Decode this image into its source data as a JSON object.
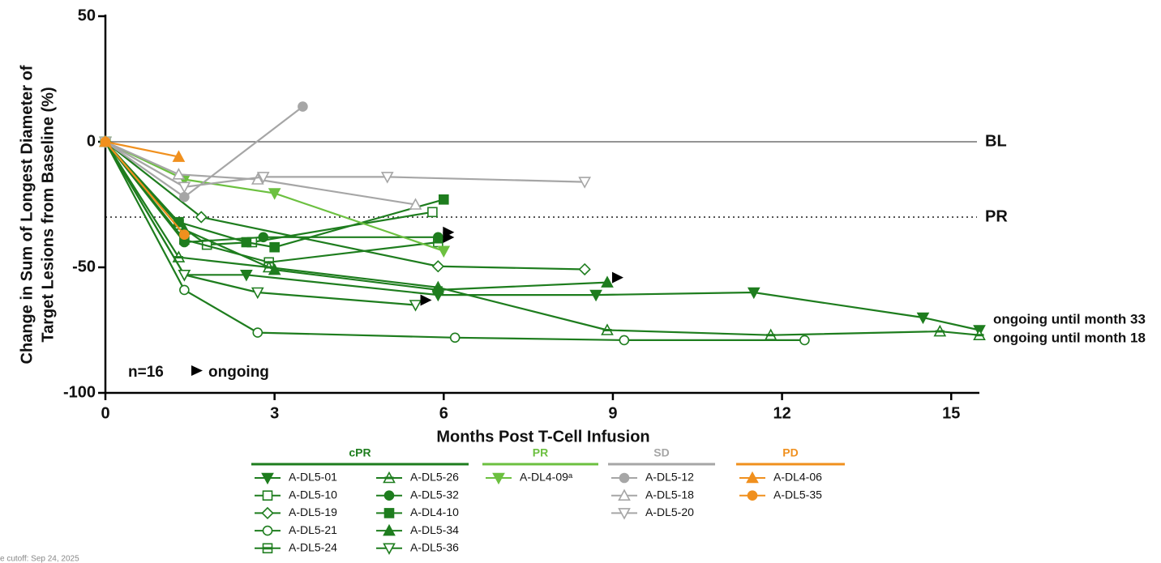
{
  "chart_data": {
    "type": "line",
    "y_label": [
      "Change in Sum of Longest Diameter of",
      "Target Lesions from Baseline (%)"
    ],
    "x_label": "Months Post T-Cell Infusion",
    "xlim": [
      0,
      15.5
    ],
    "xticks": [
      0,
      3,
      6,
      9,
      12,
      15
    ],
    "ylim": [
      -100,
      50
    ],
    "yticks": [
      -100,
      -50,
      0,
      50
    ],
    "reference_lines": [
      {
        "value": 0,
        "label": "BL",
        "style": "solid"
      },
      {
        "value": -30,
        "label": "PR",
        "style": "dotted"
      }
    ],
    "annotations": {
      "n": "n=16",
      "ongoing": "ongoing"
    },
    "footnote": "e cutoff: Sep 24, 2025",
    "legend_groups": [
      {
        "name": "cPR",
        "color": "#1e7d1e"
      },
      {
        "name": "PR",
        "color": "#6cc040"
      },
      {
        "name": "SD",
        "color": "#a6a6a6"
      },
      {
        "name": "PD",
        "color": "#f0901e"
      }
    ],
    "series": [
      {
        "name": "A-DL5-01",
        "group": "cPR",
        "color": "#1e7d1e",
        "marker": "triangle-down",
        "fill": "filled",
        "x": [
          0,
          1.4,
          2.5,
          5.9,
          8.7,
          11.5,
          14.5,
          15.5
        ],
        "values": [
          0,
          -53,
          -53,
          -61,
          -61,
          -60,
          -70,
          -75
        ],
        "note": "ongoing until month 33"
      },
      {
        "name": "A-DL5-10",
        "group": "cPR",
        "color": "#1e7d1e",
        "marker": "square",
        "fill": "open",
        "x": [
          0,
          1.3,
          1.8,
          2.6,
          5.8
        ],
        "values": [
          0,
          -33,
          -41,
          -40,
          -28
        ]
      },
      {
        "name": "A-DL5-19",
        "group": "cPR",
        "color": "#1e7d1e",
        "marker": "diamond",
        "fill": "open",
        "x": [
          0,
          1.7,
          5.9,
          8.5
        ],
        "values": [
          0,
          -30,
          -49.6,
          -50.8
        ]
      },
      {
        "name": "A-DL5-21",
        "group": "cPR",
        "color": "#1e7d1e",
        "marker": "circle",
        "fill": "open",
        "x": [
          0,
          1.4,
          2.7,
          6.2,
          9.2,
          12.4
        ],
        "values": [
          0,
          -59,
          -76,
          -78,
          -79,
          -79
        ]
      },
      {
        "name": "A-DL5-24",
        "group": "cPR",
        "color": "#1e7d1e",
        "marker": "square",
        "fill": "half",
        "x": [
          0,
          1.4,
          2.9,
          5.9
        ],
        "values": [
          0,
          -39,
          -48,
          -40
        ],
        "ongoing": true
      },
      {
        "name": "A-DL5-26",
        "group": "cPR",
        "color": "#1e7d1e",
        "marker": "triangle",
        "fill": "half",
        "x": [
          0,
          1.3,
          2.9,
          5.9,
          8.9,
          11.8,
          14.8,
          15.5
        ],
        "values": [
          0,
          -46,
          -50,
          -58,
          -75,
          -77,
          -75.5,
          -77
        ],
        "note": "ongoing until month 18"
      },
      {
        "name": "A-DL5-32",
        "group": "cPR",
        "color": "#1e7d1e",
        "marker": "circle",
        "fill": "filled",
        "x": [
          0,
          1.4,
          2.8,
          5.9
        ],
        "values": [
          0,
          -40,
          -38,
          -38
        ],
        "ongoing": true
      },
      {
        "name": "A-DL4-10",
        "group": "cPR",
        "color": "#1e7d1e",
        "marker": "square",
        "fill": "filled",
        "x": [
          0,
          1.3,
          2.5,
          3,
          6
        ],
        "values": [
          0,
          -32,
          -40,
          -42,
          -23
        ]
      },
      {
        "name": "A-DL5-34",
        "group": "cPR",
        "color": "#1e7d1e",
        "marker": "triangle",
        "fill": "filled",
        "x": [
          0,
          1.4,
          3,
          5.9,
          8.9
        ],
        "values": [
          0,
          -35,
          -51,
          -59,
          -56
        ],
        "ongoing": true
      },
      {
        "name": "A-DL5-36",
        "group": "cPR",
        "color": "#1e7d1e",
        "marker": "triangle-down",
        "fill": "open",
        "x": [
          0,
          1.4,
          2.7,
          5.5
        ],
        "values": [
          0,
          -53,
          -60,
          -65
        ],
        "ongoing": true
      },
      {
        "name": "A-DL4-09ᵃ",
        "group": "PR",
        "color": "#6cc040",
        "marker": "triangle-down",
        "fill": "filled",
        "x": [
          0,
          1.4,
          3,
          6
        ],
        "values": [
          0,
          -15,
          -20.5,
          -43.5
        ]
      },
      {
        "name": "A-DL5-12",
        "group": "SD",
        "color": "#a6a6a6",
        "marker": "circle",
        "fill": "filled",
        "x": [
          0,
          1.4,
          3.5
        ],
        "values": [
          0,
          -22,
          14
        ]
      },
      {
        "name": "A-DL5-18",
        "group": "SD",
        "color": "#a6a6a6",
        "marker": "triangle",
        "fill": "open",
        "x": [
          0,
          1.3,
          2.7,
          5.5
        ],
        "values": [
          0,
          -13,
          -15,
          -25
        ]
      },
      {
        "name": "A-DL5-20",
        "group": "SD",
        "color": "#a6a6a6",
        "marker": "triangle-down",
        "fill": "open",
        "x": [
          0,
          1.4,
          2.8,
          5,
          8.5
        ],
        "values": [
          0,
          -18,
          -14,
          -14,
          -16
        ]
      },
      {
        "name": "A-DL4-06",
        "group": "PD",
        "color": "#f0901e",
        "marker": "triangle",
        "fill": "filled",
        "x": [
          0,
          1.3
        ],
        "values": [
          0,
          -6
        ]
      },
      {
        "name": "A-DL5-35",
        "group": "PD",
        "color": "#f0901e",
        "marker": "circle",
        "fill": "filled",
        "x": [
          0,
          1.4
        ],
        "values": [
          0,
          -37
        ]
      }
    ]
  }
}
